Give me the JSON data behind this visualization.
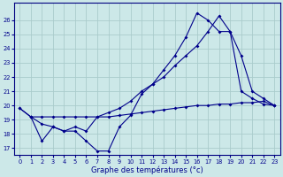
{
  "xlabel": "Graphe des températures (°c)",
  "bg_color": "#cce8e8",
  "grid_color": "#aacccc",
  "line_color": "#00008b",
  "spine_color": "#000080",
  "ylim": [
    16.5,
    27.2
  ],
  "xlim": [
    -0.5,
    23.5
  ],
  "yticks": [
    17,
    18,
    19,
    20,
    21,
    22,
    23,
    24,
    25,
    26
  ],
  "xticks": [
    0,
    1,
    2,
    3,
    4,
    5,
    6,
    7,
    8,
    9,
    10,
    11,
    12,
    13,
    14,
    15,
    16,
    17,
    18,
    19,
    20,
    21,
    22,
    23
  ],
  "line1_x": [
    0,
    1,
    2,
    3,
    4,
    5,
    6,
    7,
    8,
    9,
    10,
    11,
    12,
    13,
    14,
    15,
    16,
    17,
    18,
    19,
    20,
    21,
    22,
    23
  ],
  "line1_y": [
    19.8,
    19.2,
    19.2,
    19.2,
    19.2,
    19.2,
    19.2,
    19.2,
    19.2,
    19.3,
    19.4,
    19.5,
    19.6,
    19.7,
    19.8,
    19.9,
    20.0,
    20.0,
    20.1,
    20.1,
    20.2,
    20.2,
    20.3,
    20.0
  ],
  "line2_x": [
    1,
    2,
    3,
    4,
    5,
    6,
    7,
    8,
    9,
    10,
    11,
    12,
    13,
    14,
    15,
    16,
    17,
    18,
    19,
    20,
    21,
    22,
    23
  ],
  "line2_y": [
    19.2,
    17.5,
    18.5,
    18.2,
    18.2,
    17.5,
    16.8,
    16.8,
    18.5,
    19.3,
    20.8,
    21.5,
    22.5,
    23.5,
    24.8,
    26.5,
    26.0,
    25.2,
    25.2,
    21.0,
    20.5,
    20.1,
    20.0
  ],
  "line3_x": [
    0,
    1,
    2,
    3,
    4,
    5,
    6,
    7,
    8,
    9,
    10,
    11,
    12,
    13,
    14,
    15,
    16,
    17,
    18,
    19,
    20,
    21,
    22,
    23
  ],
  "line3_y": [
    19.8,
    19.2,
    18.7,
    18.5,
    18.2,
    18.5,
    18.2,
    19.2,
    19.5,
    19.8,
    20.3,
    21.0,
    21.5,
    22.0,
    22.8,
    23.5,
    24.2,
    25.2,
    26.3,
    25.2,
    23.5,
    21.0,
    20.5,
    20.0
  ]
}
